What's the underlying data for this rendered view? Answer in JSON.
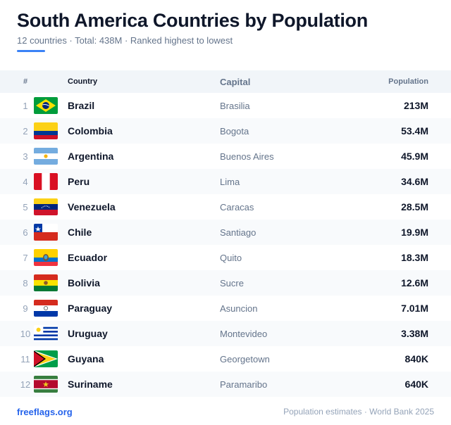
{
  "header": {
    "title": "South America Countries by Population",
    "subtitle": "12 countries · Total: 438M · Ranked highest to lowest"
  },
  "table": {
    "columns": {
      "rank": "#",
      "country": "Country",
      "capital": "Capital",
      "population": "Population"
    },
    "rows": [
      {
        "rank": "1",
        "country": "Brazil",
        "capital": "Brasilia",
        "population": "213M",
        "flag": "brazil-flag-icon"
      },
      {
        "rank": "2",
        "country": "Colombia",
        "capital": "Bogota",
        "population": "53.4M",
        "flag": "colombia-flag-icon"
      },
      {
        "rank": "3",
        "country": "Argentina",
        "capital": "Buenos Aires",
        "population": "45.9M",
        "flag": "argentina-flag-icon"
      },
      {
        "rank": "4",
        "country": "Peru",
        "capital": "Lima",
        "population": "34.6M",
        "flag": "peru-flag-icon"
      },
      {
        "rank": "5",
        "country": "Venezuela",
        "capital": "Caracas",
        "population": "28.5M",
        "flag": "venezuela-flag-icon"
      },
      {
        "rank": "6",
        "country": "Chile",
        "capital": "Santiago",
        "population": "19.9M",
        "flag": "chile-flag-icon"
      },
      {
        "rank": "7",
        "country": "Ecuador",
        "capital": "Quito",
        "population": "18.3M",
        "flag": "ecuador-flag-icon"
      },
      {
        "rank": "8",
        "country": "Bolivia",
        "capital": "Sucre",
        "population": "12.6M",
        "flag": "bolivia-flag-icon"
      },
      {
        "rank": "9",
        "country": "Paraguay",
        "capital": "Asuncion",
        "population": "7.01M",
        "flag": "paraguay-flag-icon"
      },
      {
        "rank": "10",
        "country": "Uruguay",
        "capital": "Montevideo",
        "population": "3.38M",
        "flag": "uruguay-flag-icon"
      },
      {
        "rank": "11",
        "country": "Guyana",
        "capital": "Georgetown",
        "population": "840K",
        "flag": "guyana-flag-icon"
      },
      {
        "rank": "12",
        "country": "Suriname",
        "capital": "Paramaribo",
        "population": "640K",
        "flag": "suriname-flag-icon"
      }
    ]
  },
  "footer": {
    "brand": "freeflags.org",
    "source": "Population estimates · World Bank 2025"
  },
  "colors": {
    "accent": "#3b82f6",
    "brand": "#2563eb",
    "header_bg": "#f1f5f9",
    "stripe_bg": "#f8fafc"
  }
}
